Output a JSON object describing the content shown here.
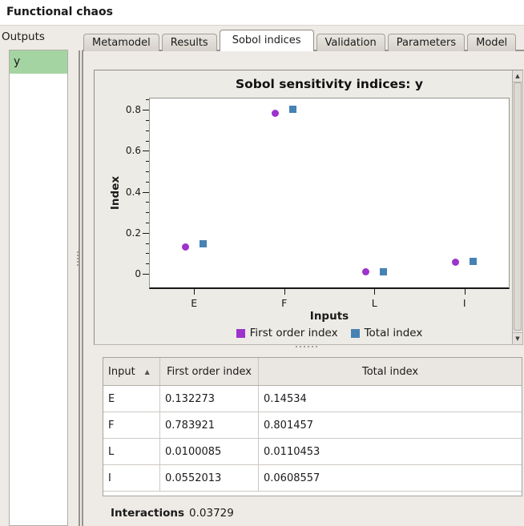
{
  "window": {
    "title": "Functional chaos"
  },
  "sidebar": {
    "label": "Outputs",
    "items": [
      {
        "label": "y",
        "selected": true
      }
    ]
  },
  "tabs": {
    "active_index": 2,
    "items": [
      {
        "label": "Metamodel"
      },
      {
        "label": "Results"
      },
      {
        "label": "Sobol indices"
      },
      {
        "label": "Validation"
      },
      {
        "label": "Parameters"
      },
      {
        "label": "Model"
      }
    ]
  },
  "chart_data": {
    "type": "scatter",
    "title": "Sobol sensitivity indices: y",
    "xlabel": "Inputs",
    "ylabel": "Index",
    "categories": [
      "E",
      "F",
      "L",
      "I"
    ],
    "series": [
      {
        "name": "First order index",
        "marker": "circle",
        "color": "#9c33cc",
        "values": [
          0.132273,
          0.783921,
          0.0100085,
          0.0552013
        ]
      },
      {
        "name": "Total index",
        "marker": "square",
        "color": "#4682b4",
        "values": [
          0.14534,
          0.801457,
          0.0110453,
          0.0608557
        ]
      }
    ],
    "ylim": [
      0,
      0.8
    ],
    "ytick_major": 0.2,
    "ytick_minor": 0.05,
    "grid": false,
    "legend_position": "bottom"
  },
  "table": {
    "columns": [
      "Input",
      "First order index",
      "Total index"
    ],
    "sort": {
      "column": "Input",
      "ascending": true,
      "arrow": "▲"
    },
    "rows": [
      [
        "E",
        "0.132273",
        "0.14534"
      ],
      [
        "F",
        "0.783921",
        "0.801457"
      ],
      [
        "L",
        "0.0100085",
        "0.0110453"
      ],
      [
        "I",
        "0.0552013",
        "0.0608557"
      ]
    ]
  },
  "footer": {
    "interactions_label": "Interactions",
    "interactions_value": "0.03729"
  },
  "scrollbar": {
    "up_icon": "▲",
    "down_icon": "▼"
  },
  "colors": {
    "selected_output": "#a4d4a1",
    "first_order": "#9c33cc",
    "total_index": "#4682b4"
  }
}
